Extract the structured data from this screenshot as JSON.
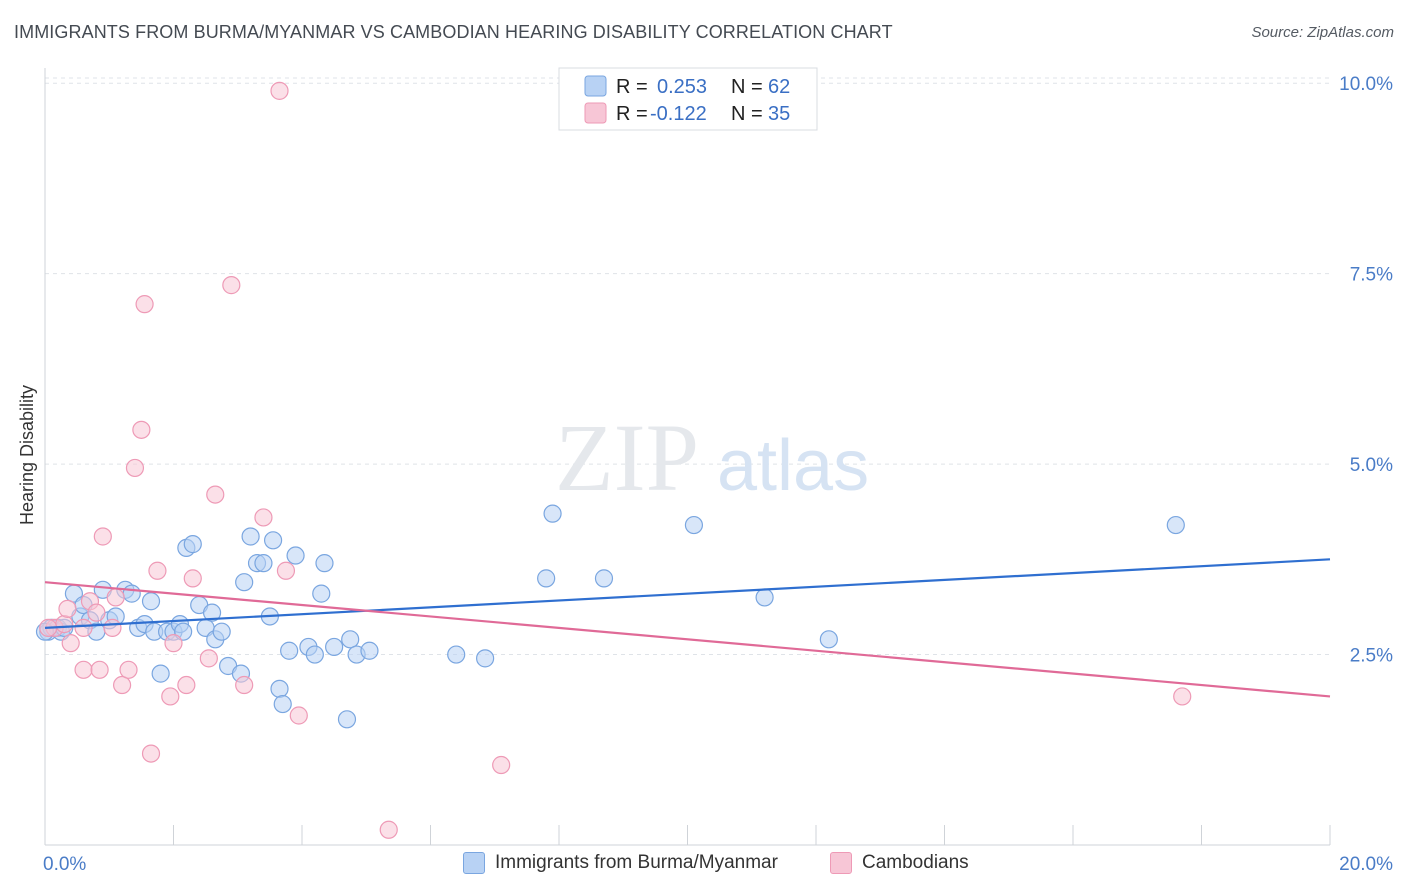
{
  "header": {
    "title": "IMMIGRANTS FROM BURMA/MYANMAR VS CAMBODIAN HEARING DISABILITY CORRELATION CHART",
    "source": "Source: ZipAtlas.com"
  },
  "watermark": {
    "zip": "ZIP",
    "atlas": "atlas"
  },
  "legend": {
    "rows": [
      {
        "r_label": "R =",
        "r_value": "0.253",
        "n_label": "N =",
        "n_value": "62"
      },
      {
        "r_label": "R =",
        "r_value": "-0.122",
        "n_label": "N =",
        "n_value": "35"
      }
    ]
  },
  "colors": {
    "blue_fill": "#b8d2f4",
    "blue_stroke": "#7aa6e0",
    "blue_line": "#2f6fd0",
    "pink_fill": "#f7c6d6",
    "pink_stroke": "#ee9ab6",
    "pink_line": "#e06a97",
    "tick_text": "#4a7cc7",
    "grid": "#dfe3e8"
  },
  "chart_data": {
    "type": "scatter",
    "title": "IMMIGRANTS FROM BURMA/MYANMAR VS CAMBODIAN HEARING DISABILITY CORRELATION CHART",
    "xlabel": "",
    "ylabel": "Hearing Disability",
    "xlim": [
      0,
      20
    ],
    "ylim": [
      0,
      10.2
    ],
    "x_tick_labels": [
      "0.0%",
      "20.0%"
    ],
    "y_ticks": [
      2.5,
      5.0,
      7.5,
      10.0
    ],
    "y_tick_labels": [
      "2.5%",
      "5.0%",
      "7.5%",
      "10.0%"
    ],
    "grid": "horizontal dashed",
    "legend_position": "bottom",
    "series": [
      {
        "name": "Immigrants from Burma/Myanmar",
        "color": "#7aa6e0",
        "trend": {
          "x": [
            0,
            20
          ],
          "y": [
            2.85,
            3.75
          ]
        },
        "points": [
          [
            0.05,
            2.8
          ],
          [
            0.1,
            2.85
          ],
          [
            0.2,
            2.85
          ],
          [
            0.25,
            2.8
          ],
          [
            0.3,
            2.85
          ],
          [
            0.45,
            3.3
          ],
          [
            0.55,
            3.0
          ],
          [
            0.6,
            3.15
          ],
          [
            0.7,
            2.95
          ],
          [
            0.8,
            2.8
          ],
          [
            0.9,
            3.35
          ],
          [
            1.0,
            2.95
          ],
          [
            1.1,
            3.0
          ],
          [
            1.25,
            3.35
          ],
          [
            1.35,
            3.3
          ],
          [
            1.45,
            2.85
          ],
          [
            1.55,
            2.9
          ],
          [
            1.65,
            3.2
          ],
          [
            1.7,
            2.8
          ],
          [
            1.8,
            2.25
          ],
          [
            1.9,
            2.8
          ],
          [
            2.0,
            2.8
          ],
          [
            2.1,
            2.9
          ],
          [
            2.15,
            2.8
          ],
          [
            2.2,
            3.9
          ],
          [
            2.3,
            3.95
          ],
          [
            2.4,
            3.15
          ],
          [
            2.5,
            2.85
          ],
          [
            2.6,
            3.05
          ],
          [
            2.65,
            2.7
          ],
          [
            2.75,
            2.8
          ],
          [
            2.85,
            2.35
          ],
          [
            3.05,
            2.25
          ],
          [
            3.1,
            3.45
          ],
          [
            3.2,
            4.05
          ],
          [
            3.3,
            3.7
          ],
          [
            3.4,
            3.7
          ],
          [
            3.5,
            3.0
          ],
          [
            3.55,
            4.0
          ],
          [
            3.65,
            2.05
          ],
          [
            3.7,
            1.85
          ],
          [
            3.8,
            2.55
          ],
          [
            3.9,
            3.8
          ],
          [
            4.1,
            2.6
          ],
          [
            4.2,
            2.5
          ],
          [
            4.3,
            3.3
          ],
          [
            4.35,
            3.7
          ],
          [
            4.5,
            2.6
          ],
          [
            4.7,
            1.65
          ],
          [
            4.75,
            2.7
          ],
          [
            4.85,
            2.5
          ],
          [
            5.05,
            2.55
          ],
          [
            6.4,
            2.5
          ],
          [
            6.85,
            2.45
          ],
          [
            7.8,
            3.5
          ],
          [
            7.9,
            4.35
          ],
          [
            8.7,
            3.5
          ],
          [
            10.1,
            4.2
          ],
          [
            11.2,
            3.25
          ],
          [
            12.2,
            2.7
          ],
          [
            17.6,
            4.2
          ],
          [
            0.0,
            2.8
          ]
        ]
      },
      {
        "name": "Cambodians",
        "color": "#ee9ab6",
        "trend": {
          "x": [
            0,
            20
          ],
          "y": [
            3.45,
            1.95
          ]
        },
        "points": [
          [
            0.15,
            2.85
          ],
          [
            0.3,
            2.9
          ],
          [
            0.35,
            3.1
          ],
          [
            0.4,
            2.65
          ],
          [
            0.6,
            2.85
          ],
          [
            0.6,
            2.3
          ],
          [
            0.7,
            3.2
          ],
          [
            0.8,
            3.05
          ],
          [
            0.85,
            2.3
          ],
          [
            0.9,
            4.05
          ],
          [
            1.05,
            2.85
          ],
          [
            1.1,
            3.25
          ],
          [
            1.2,
            2.1
          ],
          [
            1.3,
            2.3
          ],
          [
            1.4,
            4.95
          ],
          [
            1.5,
            5.45
          ],
          [
            1.55,
            7.1
          ],
          [
            1.65,
            1.2
          ],
          [
            1.75,
            3.6
          ],
          [
            1.95,
            1.95
          ],
          [
            2.0,
            2.65
          ],
          [
            2.2,
            2.1
          ],
          [
            2.3,
            3.5
          ],
          [
            2.55,
            2.45
          ],
          [
            2.65,
            4.6
          ],
          [
            2.9,
            7.35
          ],
          [
            3.1,
            2.1
          ],
          [
            3.4,
            4.3
          ],
          [
            3.75,
            3.6
          ],
          [
            3.95,
            1.7
          ],
          [
            3.65,
            9.9
          ],
          [
            5.35,
            0.2
          ],
          [
            7.1,
            1.05
          ],
          [
            17.7,
            1.95
          ],
          [
            0.05,
            2.85
          ]
        ]
      }
    ]
  }
}
